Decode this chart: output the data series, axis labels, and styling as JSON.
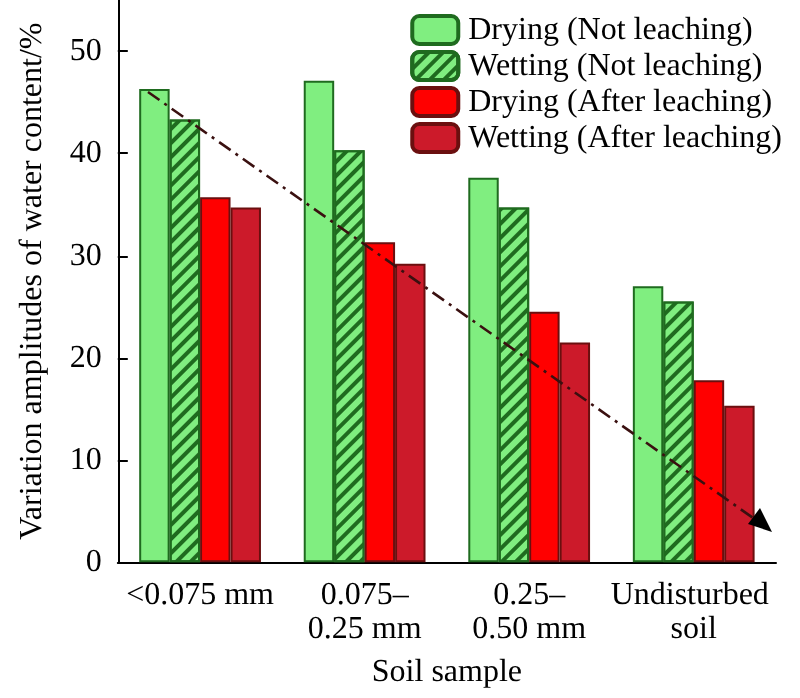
{
  "chart_data": {
    "type": "bar",
    "xlabel": "Soil sample",
    "ylabel": "Variation amplitudes of water content/%",
    "categories": [
      "<0.075 mm",
      "0.075–0.25 mm",
      "0.25–0.50 mm",
      "Undisturbed soil"
    ],
    "series": [
      {
        "name": "Drying (Not leaching)",
        "color": "#80ee80",
        "values": [
          46.3,
          47.1,
          37.6,
          27.0
        ]
      },
      {
        "name": "Wetting (Not leaching)",
        "color": "#80ee80",
        "values": [
          43.3,
          40.3,
          34.7,
          25.5
        ]
      },
      {
        "name": "Drying (After leaching)",
        "color": "#ff0000",
        "values": [
          35.7,
          31.3,
          24.5,
          17.8
        ]
      },
      {
        "name": "Wetting (After leaching)",
        "color": "#cc1a2a",
        "values": [
          34.7,
          29.2,
          21.5,
          15.3
        ]
      }
    ],
    "ylim": [
      0,
      55
    ],
    "yticks": [
      0,
      10,
      20,
      30,
      40,
      50
    ],
    "legend": "top right",
    "grid": false
  }
}
